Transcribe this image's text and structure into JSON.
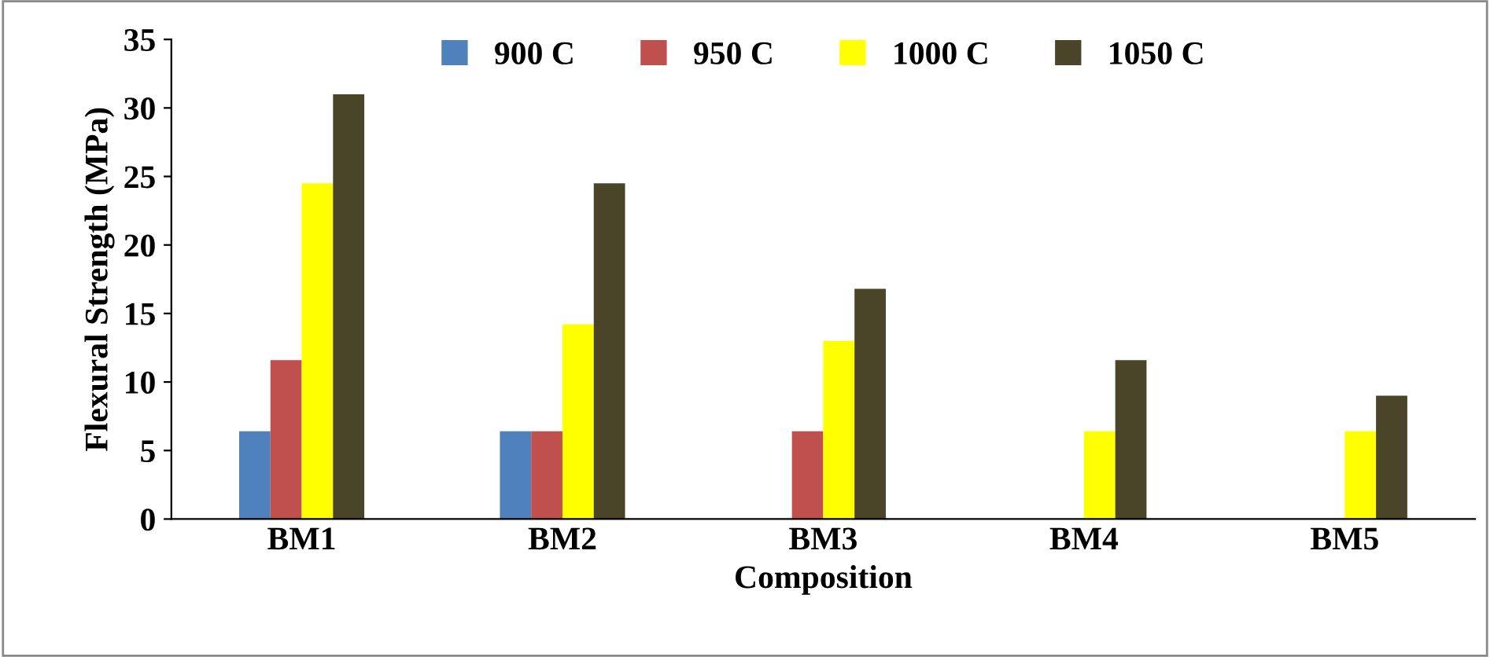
{
  "chart_data": {
    "type": "bar",
    "xlabel": "Composition",
    "ylabel": "Flexural Strength (MPa)",
    "categories": [
      "BM1",
      "BM2",
      "BM3",
      "BM4",
      "BM5"
    ],
    "series": [
      {
        "name": "900 C",
        "color": "#4f81bd",
        "values": [
          6.4,
          6.4,
          null,
          null,
          null
        ]
      },
      {
        "name": "950 C",
        "color": "#c0504d",
        "values": [
          11.6,
          6.4,
          6.4,
          null,
          null
        ]
      },
      {
        "name": "1000 C",
        "color": "#ffff00",
        "values": [
          24.5,
          14.2,
          13.0,
          6.4,
          6.4
        ]
      },
      {
        "name": "1050 C",
        "color": "#4a4429",
        "values": [
          31.0,
          24.5,
          16.8,
          11.6,
          9.0
        ]
      }
    ],
    "ylim": [
      0,
      35
    ],
    "yticks": [
      0,
      5,
      10,
      15,
      20,
      25,
      30,
      35
    ],
    "grid": false,
    "legend": "top"
  }
}
